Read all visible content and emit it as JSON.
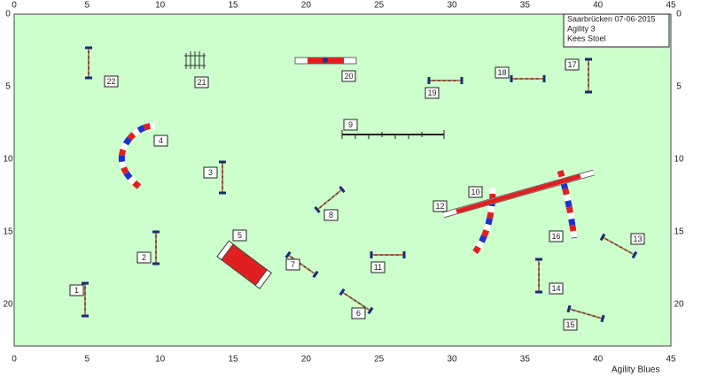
{
  "course": {
    "x_ticks": [
      "0",
      "5",
      "10",
      "15",
      "20",
      "25",
      "30",
      "35",
      "40",
      "45"
    ],
    "y_ticks": [
      "0",
      "5",
      "10",
      "15",
      "20"
    ],
    "info": [
      "Saarbrücken 07-06-2015",
      "Agility  3",
      "Kees Stoel"
    ],
    "obstacle_labels": [
      "1",
      "2",
      "3",
      "4",
      "5",
      "6",
      "7",
      "8",
      "9",
      "10",
      "11",
      "12",
      "13",
      "14",
      "15",
      "16",
      "17",
      "18",
      "19",
      "20",
      "21",
      "22"
    ],
    "footer": "Agility Blues"
  }
}
